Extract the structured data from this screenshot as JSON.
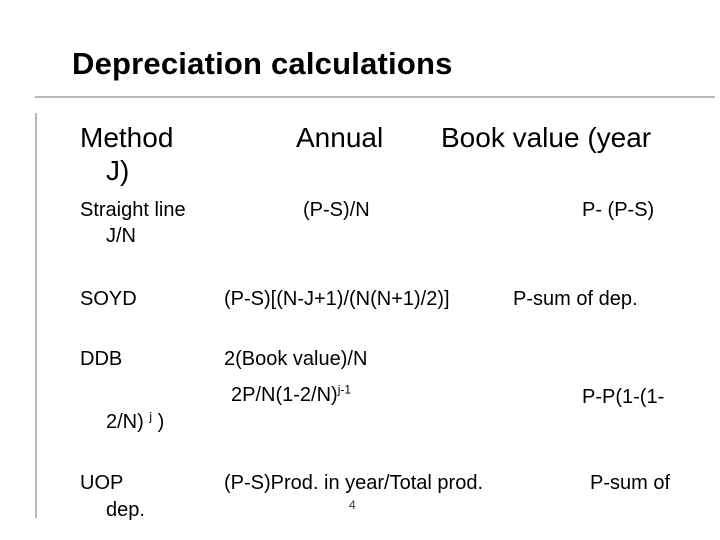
{
  "slide": {
    "title": "Depreciation calculations",
    "page_number": "4",
    "header_row": {
      "method_line1": "Method",
      "method_line2": "J)",
      "annual": "Annual",
      "book_value": "Book value (year"
    },
    "rows": {
      "straight_line": {
        "method_line1": "Straight line",
        "method_line2": "J/N",
        "annual": "(P-S)/N",
        "book_value": "P- (P-S)"
      },
      "soyd": {
        "method": "SOYD",
        "annual": "(P-S)[(N-J+1)/(N(N+1)/2)]",
        "book_value": "P-sum of dep."
      },
      "ddb": {
        "method": "DDB",
        "annual_line1": "2(Book value)/N",
        "annual_line2_base": "2P/N(1-2/N)",
        "annual_line2_sup": "j-1",
        "book_value": "P-P(1-(1-",
        "cont_base": "2/N)",
        "cont_sup": "j",
        "cont_close": ")"
      },
      "uop": {
        "method_line1": "UOP",
        "method_line2": "dep.",
        "annual": "(P-S)Prod. in year/Total prod.",
        "book_value": "P-sum of"
      }
    }
  }
}
